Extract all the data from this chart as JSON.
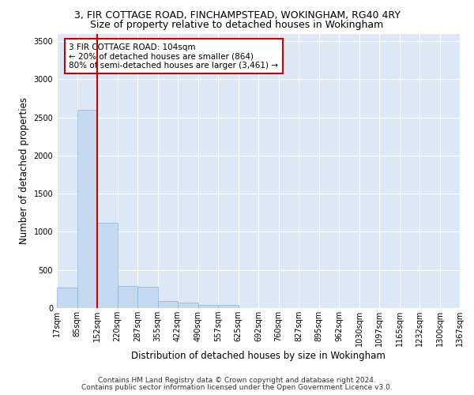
{
  "title_line1": "3, FIR COTTAGE ROAD, FINCHAMPSTEAD, WOKINGHAM, RG40 4RY",
  "title_line2": "Size of property relative to detached houses in Wokingham",
  "xlabel": "Distribution of detached houses by size in Wokingham",
  "ylabel": "Number of detached properties",
  "bar_values": [
    270,
    2600,
    1120,
    285,
    280,
    95,
    70,
    45,
    40,
    0,
    0,
    0,
    0,
    0,
    0,
    0,
    0,
    0,
    0,
    0
  ],
  "x_labels": [
    "17sqm",
    "85sqm",
    "152sqm",
    "220sqm",
    "287sqm",
    "355sqm",
    "422sqm",
    "490sqm",
    "557sqm",
    "625sqm",
    "692sqm",
    "760sqm",
    "827sqm",
    "895sqm",
    "962sqm",
    "1030sqm",
    "1097sqm",
    "1165sqm",
    "1232sqm",
    "1300sqm",
    "1367sqm"
  ],
  "bar_color": "#c5d9f0",
  "bar_edge_color": "#8ab4d8",
  "vline_color": "#cc0000",
  "annotation_text": "3 FIR COTTAGE ROAD: 104sqm\n← 20% of detached houses are smaller (864)\n80% of semi-detached houses are larger (3,461) →",
  "annotation_box_color": "#cc0000",
  "ylim": [
    0,
    3600
  ],
  "yticks": [
    0,
    500,
    1000,
    1500,
    2000,
    2500,
    3000,
    3500
  ],
  "background_color": "#dce8f5",
  "grid_color": "#ffffff",
  "footer_line1": "Contains HM Land Registry data © Crown copyright and database right 2024.",
  "footer_line2": "Contains public sector information licensed under the Open Government Licence v3.0.",
  "title_fontsize": 9,
  "subtitle_fontsize": 9,
  "axis_label_fontsize": 8.5,
  "tick_fontsize": 7,
  "footer_fontsize": 6.5
}
